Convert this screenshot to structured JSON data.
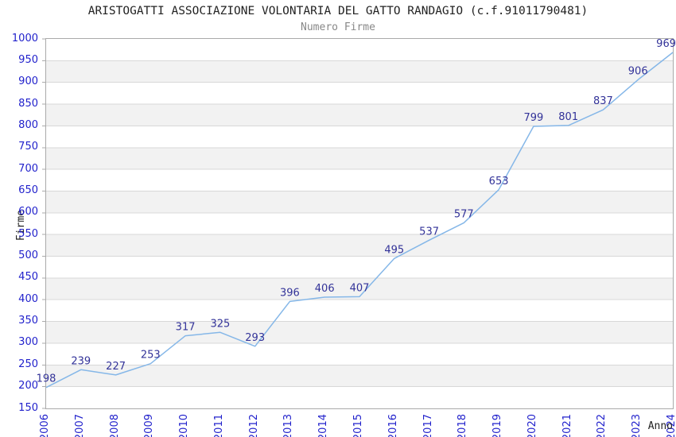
{
  "chart_data": {
    "type": "line",
    "title": "ARISTOGATTI ASSOCIAZIONE VOLONTARIA DEL GATTO RANDAGIO (c.f.91011790481)",
    "subtitle": "Numero Firme",
    "xlabel": "Anno",
    "ylabel": "Firme",
    "x": [
      2006,
      2007,
      2008,
      2009,
      2010,
      2011,
      2012,
      2013,
      2014,
      2015,
      2016,
      2017,
      2018,
      2019,
      2020,
      2021,
      2022,
      2023,
      2024
    ],
    "values": [
      198,
      239,
      227,
      253,
      317,
      325,
      293,
      396,
      406,
      407,
      495,
      537,
      577,
      653,
      799,
      801,
      837,
      906,
      969
    ],
    "ylim": [
      150,
      1000
    ],
    "ytick_step": 50,
    "grid": "horizontal gridlines with alternating shaded bands",
    "legend_position": "none",
    "colors": {
      "line": "#85b7e8",
      "point_label": "#333399",
      "tick_label": "#2222cc",
      "band": "#f2f2f2",
      "grid_line": "#d8d8d8",
      "plot_border": "#aaaaaa",
      "title": "#222222",
      "subtitle": "#888888",
      "axis_title": "#222222",
      "background": "#ffffff"
    }
  }
}
